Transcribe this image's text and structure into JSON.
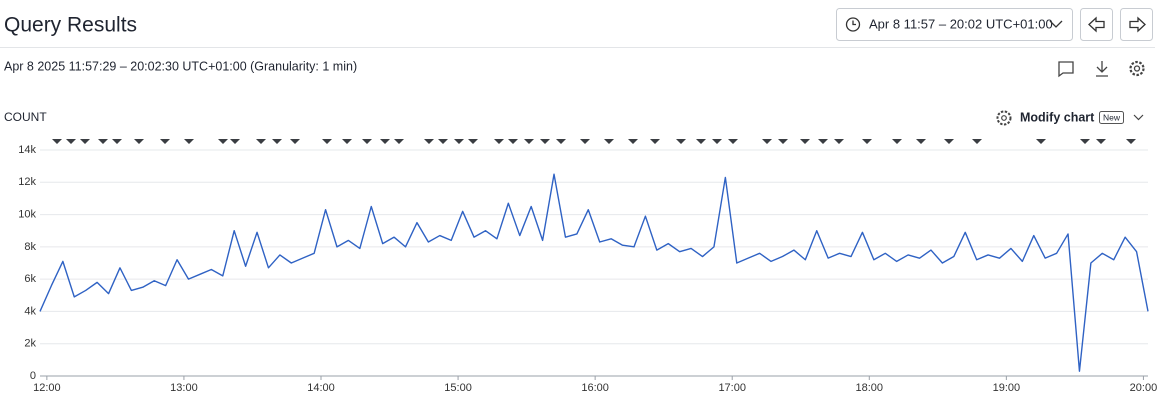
{
  "header": {
    "title": "Query Results",
    "time_range_button": "Apr 8 11:57 – 20:02 UTC+01:00",
    "subtitle": "Apr 8 2025 11:57:29 – 20:02:30 UTC+01:00 (Granularity: 1 min)",
    "modify_chart": "Modify chart",
    "new_badge": "New"
  },
  "chart_data": {
    "type": "line",
    "y_label": "COUNT",
    "color": "#2f62c4",
    "grid": true,
    "x": [
      717,
      722,
      727,
      732,
      737,
      742,
      747,
      752,
      757,
      762,
      767,
      772,
      777,
      782,
      787,
      792,
      797,
      802,
      807,
      812,
      817,
      822,
      827,
      832,
      837,
      842,
      847,
      852,
      857,
      862,
      867,
      872,
      877,
      882,
      887,
      892,
      897,
      902,
      907,
      912,
      917,
      922,
      927,
      932,
      937,
      942,
      947,
      952,
      957,
      962,
      967,
      972,
      977,
      982,
      987,
      992,
      997,
      1002,
      1007,
      1012,
      1017,
      1022,
      1027,
      1032,
      1037,
      1042,
      1047,
      1052,
      1057,
      1062,
      1067,
      1072,
      1077,
      1082,
      1087,
      1092,
      1097,
      1102,
      1107,
      1112,
      1117,
      1122,
      1127,
      1132,
      1137,
      1142,
      1147,
      1152,
      1157,
      1162,
      1167,
      1172,
      1177,
      1182,
      1187,
      1192,
      1197,
      1202
    ],
    "values": [
      4000,
      5600,
      7100,
      4900,
      5300,
      5800,
      5100,
      6700,
      5300,
      5500,
      5900,
      5600,
      7200,
      6000,
      6300,
      6600,
      6200,
      9000,
      6800,
      8900,
      6700,
      7500,
      7000,
      7300,
      7600,
      10300,
      8000,
      8400,
      7900,
      10500,
      8200,
      8600,
      8000,
      9500,
      8300,
      8700,
      8400,
      10200,
      8600,
      9000,
      8500,
      10700,
      8700,
      10500,
      8400,
      12500,
      8600,
      8800,
      10300,
      8300,
      8500,
      8100,
      8000,
      9900,
      7800,
      8200,
      7700,
      7900,
      7400,
      8000,
      12300,
      7000,
      7300,
      7600,
      7100,
      7400,
      7800,
      7200,
      9000,
      7300,
      7600,
      7400,
      8900,
      7200,
      7600,
      7100,
      7500,
      7300,
      7800,
      7000,
      7400,
      8900,
      7200,
      7500,
      7300,
      7900,
      7100,
      8700,
      7300,
      7600,
      8800,
      300,
      7000,
      7600,
      7200,
      8600,
      7700,
      4000
    ],
    "xlim": [
      717,
      1202
    ],
    "xticks": [
      {
        "value": 720,
        "label": "12:00"
      },
      {
        "value": 780,
        "label": "13:00"
      },
      {
        "value": 840,
        "label": "14:00"
      },
      {
        "value": 900,
        "label": "15:00"
      },
      {
        "value": 960,
        "label": "16:00"
      },
      {
        "value": 1020,
        "label": "17:00"
      },
      {
        "value": 1080,
        "label": "18:00"
      },
      {
        "value": 1140,
        "label": "19:00"
      },
      {
        "value": 1200,
        "label": "20:00"
      }
    ],
    "ylim": [
      0,
      14000
    ],
    "yticks": [
      0,
      {
        "value": 2000,
        "label": "2k"
      },
      {
        "value": 4000,
        "label": "4k"
      },
      {
        "value": 6000,
        "label": "6k"
      },
      {
        "value": 8000,
        "label": "8k"
      },
      {
        "value": 10000,
        "label": "10k"
      },
      {
        "value": 12000,
        "label": "12k"
      },
      {
        "value": 14000,
        "label": "14k"
      }
    ]
  }
}
